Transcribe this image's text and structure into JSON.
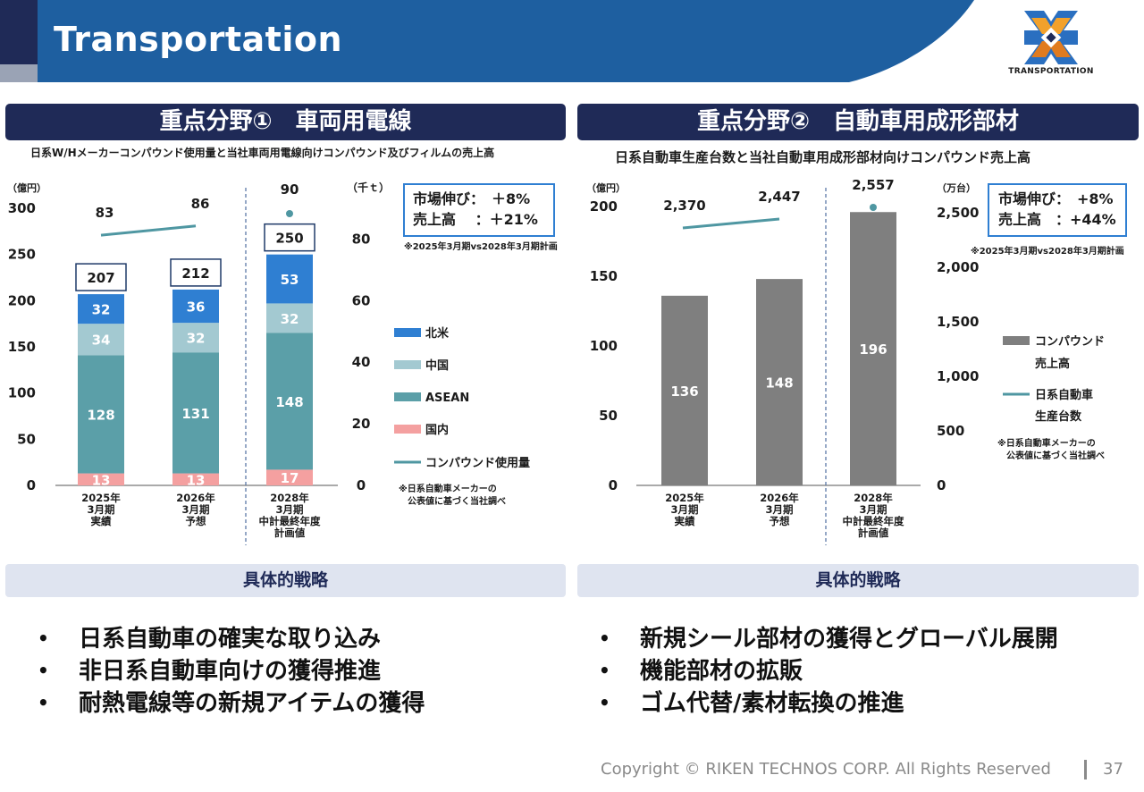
{
  "header": {
    "title": "Transportation",
    "logo_text": "TRANSPORTATION"
  },
  "left": {
    "section_title": "重点分野①　車両用電線",
    "subtitle": "日系W/Hメーカーコンパウンド使用量と当社車両用電線向けコンパウンド及びフィルムの売上高",
    "kpi": {
      "line1": "市場伸び：　＋8%",
      "line2": "売上高　 ：＋21%",
      "note": "※2025年3月期vs2028年3月期計画"
    },
    "source_note_1": "※日系自動車メーカーの",
    "source_note_2": "公表値に基づく当社調べ",
    "strategy_title": "具体的戦略",
    "strategies": [
      "日系自動車の確実な取り込み",
      "非日系自動車向けの獲得推進",
      "耐熱電線等の新規アイテムの獲得"
    ]
  },
  "right": {
    "section_title": "重点分野②　自動車用成形部材",
    "subtitle": "日系自動車生産台数と当社自動車用成形部材向けコンパウンド売上高",
    "kpi": {
      "line1": "市場伸び：　+8%",
      "line2": "売上高　：+44%",
      "note": "※2025年3月期vs2028年3月期計画"
    },
    "source_note_1": "※日系自動車メーカーの",
    "source_note_2": "公表値に基づく当社調べ",
    "strategy_title": "具体的戦略",
    "strategies": [
      "新規シール部材の獲得とグローバル展開",
      "機能部材の拡販",
      "ゴム代替/素材転換の推進"
    ]
  },
  "chart_data": [
    {
      "type": "bar",
      "stacked": true,
      "categories": [
        [
          "2025年",
          "3月期",
          "実績"
        ],
        [
          "2026年",
          "3月期",
          "予想"
        ],
        [
          "2028年",
          "3月期",
          "中計最終年度",
          "計画値"
        ]
      ],
      "ylabel": "（億円）",
      "ylim": [
        0,
        300
      ],
      "yticks": [
        0,
        50,
        100,
        150,
        200,
        250,
        300
      ],
      "y2label": "（千ｔ）",
      "y2lim": [
        0,
        90
      ],
      "y2ticks": [
        0,
        20,
        40,
        60,
        80
      ],
      "series": [
        {
          "name": "国内",
          "color": "#f4a0a0",
          "values": [
            13,
            13,
            17
          ]
        },
        {
          "name": "ASEAN",
          "color": "#5b9fa8",
          "values": [
            128,
            131,
            148
          ]
        },
        {
          "name": "中国",
          "color": "#a3c9d1",
          "values": [
            34,
            32,
            32
          ]
        },
        {
          "name": "北米",
          "color": "#2f7fd2",
          "values": [
            32,
            36,
            53
          ]
        }
      ],
      "totals": [
        207,
        212,
        250
      ],
      "line": {
        "name": "コンパウンド使用量",
        "color": "#4f97a2",
        "axis": "y2",
        "values": [
          83,
          86,
          90
        ]
      },
      "legend_position": "right"
    },
    {
      "type": "bar",
      "categories": [
        [
          "2025年",
          "3月期",
          "実績"
        ],
        [
          "2026年",
          "3月期",
          "予想"
        ],
        [
          "2028年",
          "3月期",
          "中計最終年度",
          "計画値"
        ]
      ],
      "ylabel": "（億円）",
      "ylim": [
        0,
        200
      ],
      "yticks": [
        0,
        50,
        100,
        150,
        200
      ],
      "y2label": "（万台）",
      "y2lim": [
        0,
        2500
      ],
      "y2ticks": [
        0,
        500,
        1000,
        1500,
        2000,
        2500
      ],
      "y2ticklabels": [
        "0",
        "500",
        "1,000",
        "1,500",
        "2,000",
        "2,500"
      ],
      "series": [
        {
          "name": "コンパウンド売上高",
          "color": "#7f7f7f",
          "values": [
            136,
            148,
            196
          ]
        }
      ],
      "line": {
        "name": "日系自動車生産台数",
        "color": "#4f97a2",
        "axis": "y2",
        "values": [
          2370,
          2447,
          2557
        ],
        "labels": [
          "2,370",
          "2,447",
          "2,557"
        ]
      },
      "legend": [
        [
          "コンパウンド",
          "売上高"
        ],
        [
          "日系自動車",
          "生産台数"
        ]
      ],
      "legend_position": "right"
    }
  ],
  "footer": {
    "copyright": "Copyright © RIKEN TECHNOS CORP. All Rights Reserved",
    "page": "37"
  },
  "colors": {
    "navy": "#1f2a57",
    "header_blue": "#1e5fa0",
    "pale": "#dfe4f0"
  }
}
